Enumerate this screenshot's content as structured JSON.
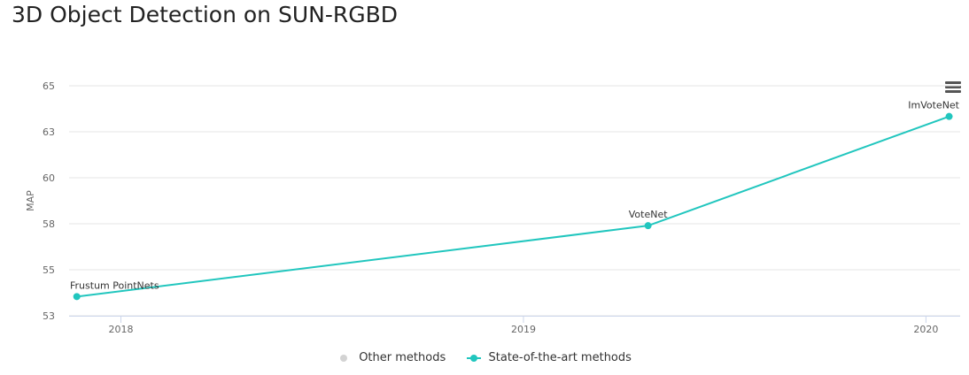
{
  "page": {
    "title": "3D Object Detection on SUN-RGBD"
  },
  "colors": {
    "sota": "#21c6be",
    "other": "#d3d3d3",
    "grid": "#e6e6e6",
    "axis_text": "#666666",
    "menu": "#555555"
  },
  "chart_data": {
    "type": "line",
    "title": "3D Object Detection on SUN-RGBD",
    "xlabel": "",
    "ylabel": "MAP",
    "xlim": [
      "2017-11-15",
      "2020-02-01"
    ],
    "ylim": [
      53,
      65
    ],
    "y_ticks": [
      {
        "value": 53,
        "label": "53"
      },
      {
        "value": 55.4,
        "label": "55"
      },
      {
        "value": 57.8,
        "label": "58"
      },
      {
        "value": 60.2,
        "label": "60"
      },
      {
        "value": 62.6,
        "label": "63"
      },
      {
        "value": 65,
        "label": "65"
      }
    ],
    "x_ticks": [
      {
        "value": "2018-01-01",
        "label": "2018"
      },
      {
        "value": "2019-01-01",
        "label": "2019"
      },
      {
        "value": "2020-01-01",
        "label": "2020"
      }
    ],
    "grid": true,
    "legend_position": "bottom",
    "legend": [
      "Other methods",
      "State-of-the-art methods"
    ],
    "series": [
      {
        "name": "Other methods",
        "points": []
      },
      {
        "name": "State-of-the-art methods",
        "points": [
          {
            "x": "2017-11-22",
            "y": 54.0,
            "label": "Frustum PointNets"
          },
          {
            "x": "2019-04-24",
            "y": 57.7,
            "label": "VoteNet"
          },
          {
            "x": "2020-01-22",
            "y": 63.4,
            "label": "ImVoteNet"
          }
        ]
      }
    ]
  }
}
